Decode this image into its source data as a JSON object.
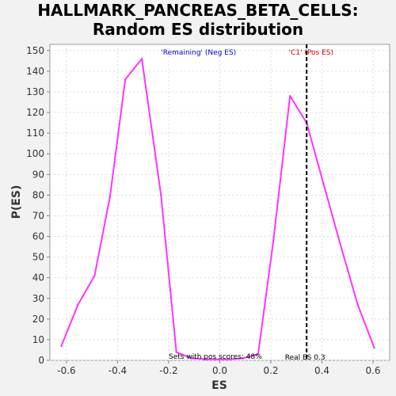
{
  "chart_data": {
    "type": "line",
    "title": "HALLMARK_PANCREAS_BETA_CELLS:",
    "subtitle": "Random ES distribution",
    "xlabel": "ES",
    "ylabel": "P(ES)",
    "xlim": [
      -0.665,
      0.665
    ],
    "ylim": [
      0,
      153
    ],
    "grid": true,
    "x_ticks": [
      -0.6,
      -0.4,
      -0.2,
      0.0,
      0.2,
      0.4,
      0.6
    ],
    "x_tick_labels": [
      "-0.6",
      "-0.4",
      "-0.2",
      "0.0",
      "0.2",
      "0.4",
      "0.6"
    ],
    "y_ticks": [
      0,
      10,
      20,
      30,
      40,
      50,
      60,
      70,
      80,
      90,
      100,
      110,
      120,
      130,
      140,
      150
    ],
    "series": [
      {
        "color": "#ff33ff",
        "points": [
          [
            -0.62,
            7
          ],
          [
            -0.555,
            27
          ],
          [
            -0.49,
            41
          ],
          [
            -0.43,
            79
          ],
          [
            -0.37,
            136
          ],
          [
            -0.305,
            146
          ],
          [
            -0.23,
            80
          ],
          [
            -0.17,
            4
          ],
          [
            -0.11,
            1
          ],
          [
            -0.04,
            0.5
          ],
          [
            0.03,
            0.5
          ],
          [
            0.09,
            1
          ],
          [
            0.15,
            3
          ],
          [
            0.21,
            58
          ],
          [
            0.275,
            128
          ],
          [
            0.34,
            115
          ],
          [
            0.405,
            86
          ],
          [
            0.47,
            57
          ],
          [
            0.54,
            27
          ],
          [
            0.605,
            6
          ]
        ]
      }
    ],
    "real_es": {
      "x": 0.34,
      "color": "#000000",
      "label": "Real ES 0.3"
    },
    "annotations": [
      {
        "text": "'Remaining' (Neg ES)",
        "color": "#0000cc",
        "x": -0.23,
        "y": 148
      },
      {
        "text": "'C1' (Pos ES)",
        "color": "#cc0000",
        "x": 0.27,
        "y": 148
      },
      {
        "text": "Sets with pos scores: 48%",
        "color": "#000000",
        "x": -0.2,
        "y": 0.8
      }
    ]
  }
}
